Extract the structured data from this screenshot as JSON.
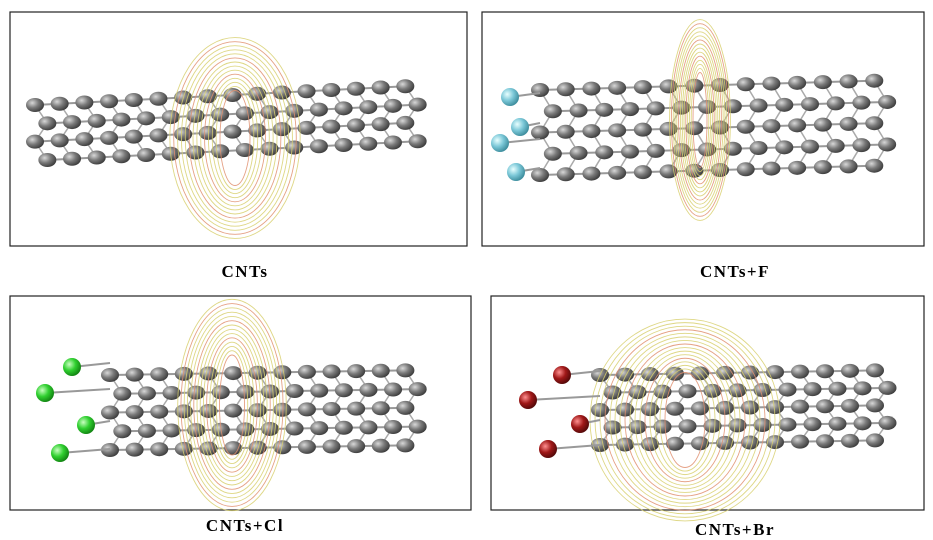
{
  "panels": [
    {
      "caption": "CNTs"
    },
    {
      "caption": "CNTs+F"
    },
    {
      "caption": "CNTs+Cl"
    },
    {
      "caption": "CNTs+Br"
    }
  ]
}
